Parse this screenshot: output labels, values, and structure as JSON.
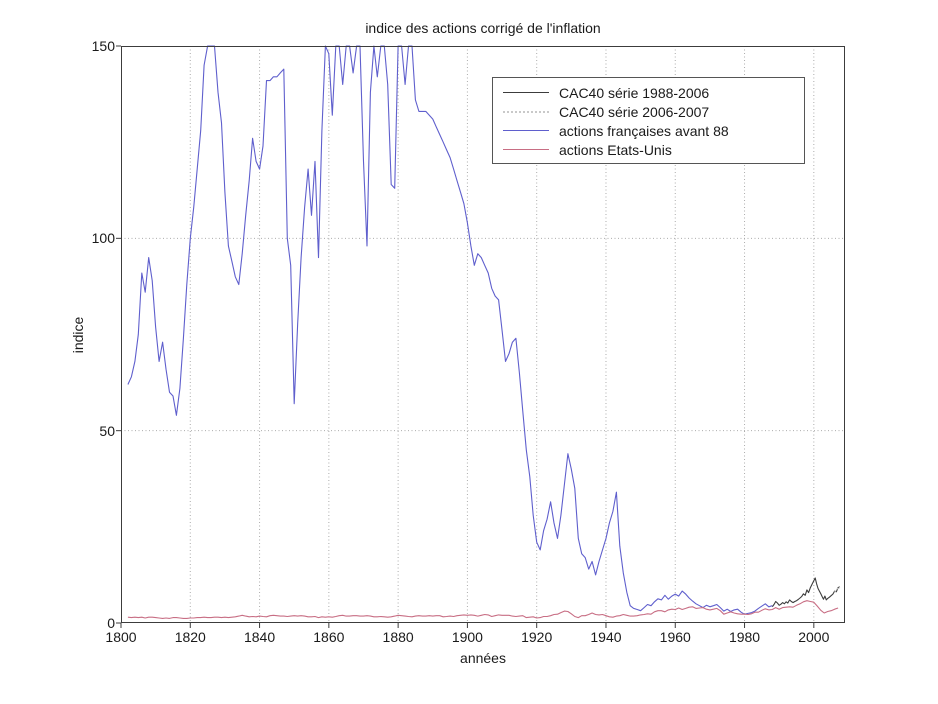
{
  "chart_data": {
    "type": "line",
    "title": "indice des actions corrigé de l'inflation",
    "xlabel": "années",
    "ylabel": "indice",
    "xlim": [
      1800,
      2009
    ],
    "ylim": [
      0,
      150
    ],
    "grid": true,
    "clip_to_ylim": true,
    "legend_position": "upper-right-inside",
    "axis_color": "#3c3c3c",
    "grid_color": "#acacac",
    "text_color": "#1a1a1a",
    "x_ticks": [
      1800,
      1820,
      1840,
      1860,
      1880,
      1900,
      1920,
      1940,
      1960,
      1980,
      2000
    ],
    "x_tick_labels": [
      "1800",
      "1820",
      "1840",
      "1860",
      "1880",
      "1900",
      "1920",
      "1940",
      "1960",
      "1980",
      "2000"
    ],
    "y_ticks": [
      0,
      50,
      100,
      150
    ],
    "y_tick_labels": [
      "0",
      "50",
      "100",
      "150"
    ],
    "series": [
      {
        "name": "CAC40 série 1988-2006",
        "color": "#3c3c3c",
        "style": "solid",
        "x": [
          1988,
          1988.5,
          1989,
          1989.5,
          1990,
          1990.5,
          1991,
          1991.5,
          1992,
          1992.5,
          1993,
          1993.5,
          1994,
          1994.5,
          1995,
          1995.5,
          1996,
          1996.5,
          1997,
          1997.5,
          1998,
          1998.5,
          1999,
          1999.5,
          2000,
          2000.4,
          2000.8,
          2001.2,
          2001.6,
          2002,
          2002.4,
          2002.8,
          2003.2,
          2003.6,
          2004,
          2004.5,
          2005,
          2005.5,
          2006,
          2006.5,
          2007,
          2007.5
        ],
        "y": [
          4.2,
          4.8,
          5.6,
          5.2,
          4.6,
          4.9,
          5.3,
          5.0,
          5.5,
          5.2,
          6.0,
          5.6,
          5.3,
          5.6,
          5.8,
          6.1,
          6.5,
          6.9,
          7.6,
          7.2,
          8.6,
          7.9,
          9.2,
          10.1,
          11.0,
          11.7,
          10.2,
          9.0,
          8.3,
          7.6,
          6.9,
          6.2,
          7.0,
          6.0,
          6.4,
          6.7,
          7.1,
          7.5,
          8.3,
          8.1,
          9.2,
          9.4
        ]
      },
      {
        "name": "CAC40 série 2006-2007",
        "color": "#c9c9c9",
        "style": "dotted",
        "x": [
          2006,
          2006.25,
          2006.5,
          2006.75,
          2007,
          2007.25,
          2007.5
        ],
        "y": [
          8.3,
          8.1,
          8.5,
          8.9,
          9.2,
          8.9,
          9.4
        ]
      },
      {
        "name": "actions françaises avant 88",
        "color": "#5f5fcd",
        "style": "solid",
        "x_start": 1802,
        "x_step": 1,
        "y": [
          62,
          64,
          68,
          75,
          91,
          86,
          95,
          89,
          77,
          68,
          73,
          66,
          60,
          59,
          54,
          61,
          74,
          88,
          100,
          108,
          118,
          128,
          145,
          158,
          163,
          154,
          138,
          130,
          112,
          98,
          94,
          90,
          88,
          96,
          106,
          115,
          126,
          120,
          118,
          124,
          141,
          141,
          142,
          142,
          143,
          144,
          100,
          93,
          57,
          78,
          95,
          108,
          118,
          106,
          120,
          95,
          128,
          155,
          148,
          132,
          150,
          158,
          140,
          150,
          158,
          143,
          158,
          164,
          120,
          98,
          138,
          155,
          142,
          158,
          162,
          140,
          114,
          113,
          156,
          164,
          140,
          152,
          155,
          136,
          133,
          133,
          133,
          132,
          131,
          129,
          127,
          125,
          123,
          121,
          118,
          115,
          112,
          109,
          104,
          98,
          93,
          96,
          95,
          93,
          91,
          87,
          85,
          84,
          76,
          68,
          70,
          73,
          74,
          65,
          55,
          45,
          38,
          28,
          21,
          19,
          24,
          27,
          31.5,
          26,
          22,
          28,
          36,
          44,
          40,
          35,
          22,
          18,
          17,
          14,
          16,
          12.5,
          16,
          19,
          22,
          26,
          29,
          34,
          20,
          13,
          8,
          4.5,
          3.8,
          3.5,
          3.2,
          4,
          4.8,
          4.5,
          5.5,
          6.3,
          6,
          7.2,
          6.2,
          7,
          7.5,
          7,
          8.3,
          7.5,
          6.5,
          5.7,
          5,
          4.5,
          4,
          4.6,
          4.2,
          4.5,
          4.8,
          4,
          3.1,
          3.6,
          3,
          3.4,
          3.6,
          2.8,
          2.3,
          2.5,
          2.7,
          3.1,
          3.8,
          4.4,
          5,
          4.2,
          4.5
        ]
      },
      {
        "name": "actions Etats-Unis",
        "color": "#c86e84",
        "style": "solid",
        "x_start": 1802,
        "x_step": 1,
        "y": [
          1.5,
          1.4,
          1.5,
          1.4,
          1.5,
          1.3,
          1.5,
          1.5,
          1.4,
          1.3,
          1.2,
          1.3,
          1.2,
          1.4,
          1.4,
          1.3,
          1.2,
          1.2,
          1.3,
          1.3,
          1.4,
          1.4,
          1.5,
          1.4,
          1.4,
          1.5,
          1.5,
          1.4,
          1.5,
          1.4,
          1.5,
          1.6,
          1.8,
          2.0,
          1.8,
          1.6,
          1.7,
          1.6,
          1.8,
          1.7,
          1.6,
          1.9,
          2.0,
          1.9,
          1.8,
          1.8,
          1.7,
          1.8,
          1.9,
          1.8,
          1.9,
          1.8,
          1.6,
          1.6,
          1.7,
          1.4,
          1.6,
          1.5,
          1.6,
          1.5,
          1.7,
          1.9,
          2.0,
          1.8,
          1.8,
          1.9,
          1.9,
          1.8,
          1.8,
          1.9,
          1.8,
          1.6,
          1.6,
          1.7,
          1.6,
          1.5,
          1.6,
          1.8,
          2.0,
          1.9,
          1.8,
          1.7,
          1.6,
          1.8,
          1.9,
          1.8,
          1.8,
          1.9,
          1.8,
          1.9,
          1.9,
          1.6,
          1.7,
          1.8,
          1.7,
          1.9,
          2.0,
          2.1,
          2.0,
          2.1,
          2.0,
          1.8,
          2.0,
          2.2,
          2.1,
          1.7,
          1.9,
          2.1,
          2.0,
          2.0,
          2.0,
          1.8,
          1.7,
          1.8,
          1.9,
          1.4,
          1.5,
          1.6,
          1.3,
          1.4,
          1.7,
          1.7,
          1.9,
          2.2,
          2.3,
          2.7,
          3.1,
          3.0,
          2.4,
          1.7,
          1.4,
          1.9,
          1.9,
          2.2,
          2.6,
          2.2,
          2.1,
          2.2,
          1.9,
          1.6,
          1.5,
          1.8,
          1.9,
          2.2,
          2.0,
          1.8,
          1.8,
          1.9,
          2.1,
          2.2,
          2.4,
          2.3,
          2.9,
          3.2,
          3.2,
          2.9,
          3.4,
          3.6,
          3.5,
          3.9,
          3.5,
          3.8,
          4.1,
          4.2,
          3.8,
          3.9,
          4.0,
          3.6,
          3.4,
          3.6,
          3.8,
          3.2,
          2.3,
          2.6,
          2.9,
          2.6,
          2.4,
          2.3,
          2.3,
          2.2,
          2.4,
          2.8,
          2.8,
          3.3,
          3.7,
          3.4,
          3.5,
          4.0,
          3.6,
          4.0,
          4.1,
          4.2,
          4.1,
          4.6,
          5.0,
          5.5,
          5.8,
          5.6,
          5.4,
          4.4,
          3.3,
          2.6,
          3.0,
          3.2,
          3.6,
          3.9
        ]
      }
    ]
  }
}
